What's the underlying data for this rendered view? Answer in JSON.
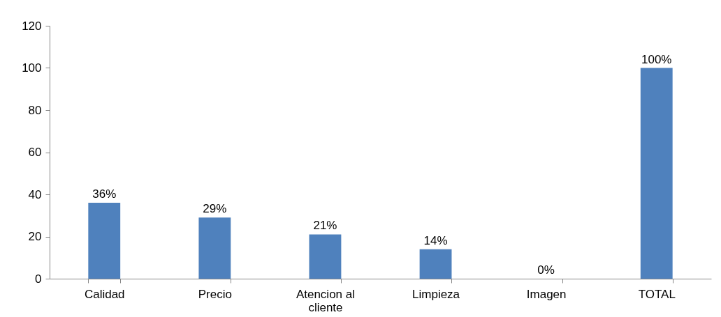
{
  "chart_data": {
    "type": "bar",
    "categories": [
      "Calidad",
      "Precio",
      "Atencion al cliente",
      "Limpieza",
      "Imagen",
      "TOTAL"
    ],
    "values": [
      36,
      29,
      21,
      14,
      0,
      100
    ],
    "value_labels": [
      "36%",
      "29%",
      "21%",
      "14%",
      "0%",
      "100%"
    ],
    "color": "#4f81bd",
    "ylim": [
      0,
      120
    ],
    "yticks": [
      0,
      20,
      40,
      60,
      80,
      100,
      120
    ],
    "grid": false
  }
}
